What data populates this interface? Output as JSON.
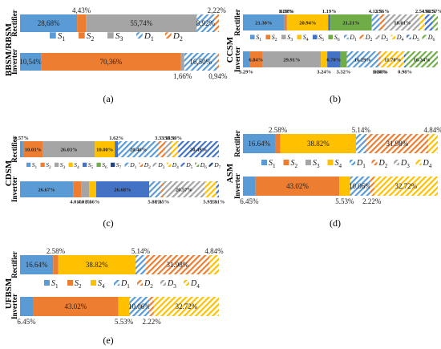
{
  "chart_data": [
    {
      "type": "bar",
      "stacked": "horizontal-100%",
      "title": "",
      "ylabel": "BBSM/RBSM",
      "caption": "(a)",
      "categories": [
        "Rectifier",
        "Inverter"
      ],
      "legend": [
        "S1",
        "S2",
        "S3",
        "D1",
        "D2"
      ],
      "series": [
        {
          "name": "S1",
          "values": [
            28.68,
            10.54
          ]
        },
        {
          "name": "S2",
          "values": [
            4.43,
            70.36
          ]
        },
        {
          "name": "S3",
          "values": [
            55.74,
            1.66
          ]
        },
        {
          "name": "D1",
          "values": [
            8.92,
            16.5
          ]
        },
        {
          "name": "D2",
          "values": [
            2.22,
            0.94
          ]
        }
      ],
      "value_labels": [
        [
          "28,68%",
          "4,43%",
          "55,74%",
          "8,92%",
          "2,22%"
        ],
        [
          "10,54%",
          "70,36%",
          "1,66%",
          "16,50%",
          "0,94%"
        ]
      ]
    },
    {
      "type": "bar",
      "stacked": "horizontal-100%",
      "title": "",
      "ylabel": "CCSM",
      "caption": "(b)",
      "categories": [
        "Rectifier",
        "Inverter"
      ],
      "legend": [
        "S1",
        "S2",
        "S3",
        "S4",
        "S5",
        "S6",
        "D1",
        "D2",
        "D3",
        "D4",
        "D5",
        "D6"
      ],
      "series": [
        {
          "name": "S1",
          "values": [
            21.3,
            3.29
          ]
        },
        {
          "name": "S2",
          "values": [
            1.19,
            6.84
          ]
        },
        {
          "name": "S3",
          "values": [
            0.31,
            29.91
          ]
        },
        {
          "name": "S4",
          "values": [
            20.94,
            3.24
          ]
        },
        {
          "name": "S5",
          "values": [
            1.19,
            6.7
          ]
        },
        {
          "name": "S6",
          "values": [
            21.21,
            3.32
          ]
        },
        {
          "name": "D1",
          "values": [
            4.13,
            16.29
          ]
        },
        {
          "name": "D2",
          "values": [
            2.56,
            1.04
          ]
        },
        {
          "name": "D3",
          "values": [
            18.01,
            0.36
          ]
        },
        {
          "name": "D4",
          "values": [
            2.54,
            11.7
          ]
        },
        {
          "name": "D5",
          "values": [
            4.08,
            0.98
          ]
        },
        {
          "name": "D6",
          "values": [
            2.57,
            16.34
          ]
        }
      ],
      "value_labels": [
        [
          "21.30%",
          "1.19%",
          "0.31%",
          "20.94%",
          "1.19%",
          "21.21%",
          "4.13%",
          "2.56%",
          "18.01%",
          "2.54%",
          "4.08%",
          "2.57%"
        ],
        [
          "3.29%",
          "6.84%",
          "29.91%",
          "3.24%",
          "6.70%",
          "3.32%",
          "16.29%",
          "1.04%",
          "0.36%",
          "11.70%",
          "0.98%",
          "16.34%"
        ]
      ]
    },
    {
      "type": "bar",
      "stacked": "horizontal-100%",
      "title": "",
      "ylabel": "CDSM",
      "caption": "(c)",
      "categories": [
        "Rectifier",
        "Inverter"
      ],
      "legend": [
        "S1",
        "S2",
        "S3",
        "S4",
        "S5",
        "S6",
        "S7",
        "D1",
        "D2",
        "D3",
        "D4",
        "D5",
        "D6",
        "D7"
      ],
      "series": [
        {
          "name": "S1",
          "values": [
            1.57,
            26.67
          ]
        },
        {
          "name": "S2",
          "values": [
            10.03,
            4.01
          ]
        },
        {
          "name": "S3",
          "values": [
            26.03,
            4.01
          ]
        },
        {
          "name": "S4",
          "values": [
            10.0,
            3.56
          ]
        },
        {
          "name": "S5",
          "values": [
            1.62,
            26.68
          ]
        },
        {
          "name": "D1",
          "values": [
            20.46,
            5.88
          ]
        },
        {
          "name": "D2",
          "values": [
            3.33,
            1.35
          ]
        },
        {
          "name": "D3",
          "values": [
            3.16,
            20.57
          ]
        },
        {
          "name": "D4",
          "values": [
            3.3,
            5.95
          ]
        },
        {
          "name": "D5",
          "values": [
            20.49,
            1.31
          ]
        }
      ],
      "value_labels": [
        [
          "1.57%",
          "10.03%",
          "26.03%",
          "10.00%",
          "1.62%",
          "20.46%",
          "3.33%",
          "3.16%",
          "3.30%",
          "20.49%"
        ],
        [
          "26.67%",
          "4.01%",
          "4.01%",
          "3.56%",
          "26.68%",
          "5.88%",
          "1.35%",
          "20.57%",
          "5.95%",
          "1.31%"
        ]
      ]
    },
    {
      "type": "bar",
      "stacked": "horizontal-100%",
      "title": "",
      "ylabel": "ASM",
      "caption": "(d)",
      "categories": [
        "Rectifier",
        "Inverter"
      ],
      "legend": [
        "S1",
        "S2",
        "S3",
        "S4",
        "D1",
        "D2",
        "D3",
        "D4"
      ],
      "series": [
        {
          "name": "S1",
          "values": [
            16.64,
            6.45
          ]
        },
        {
          "name": "S2",
          "values": [
            2.58,
            43.02
          ]
        },
        {
          "name": "S4",
          "values": [
            38.82,
            5.53
          ]
        },
        {
          "name": "D1",
          "values": [
            5.14,
            10.06
          ]
        },
        {
          "name": "D2",
          "values": [
            31.98,
            2.22
          ]
        },
        {
          "name": "D4",
          "values": [
            4.84,
            32.72
          ]
        }
      ],
      "value_labels": [
        [
          "16.64%",
          "2.58%",
          "38.82%",
          "5.14%",
          "31.98%",
          "4.84%"
        ],
        [
          "6.45%",
          "43.02%",
          "5.53%",
          "10.06%",
          "2.22%",
          "32.72%"
        ]
      ]
    },
    {
      "type": "bar",
      "stacked": "horizontal-100%",
      "title": "",
      "ylabel": "UFBSM",
      "caption": "(e)",
      "categories": [
        "Rectifier",
        "Inverter"
      ],
      "legend": [
        "S1",
        "S2",
        "S4",
        "D1",
        "D2",
        "D3",
        "D4"
      ],
      "series": [
        {
          "name": "S1",
          "values": [
            16.64,
            6.45
          ]
        },
        {
          "name": "S2",
          "values": [
            2.58,
            43.02
          ]
        },
        {
          "name": "S4",
          "values": [
            38.82,
            5.53
          ]
        },
        {
          "name": "D1",
          "values": [
            5.14,
            10.06
          ]
        },
        {
          "name": "D2",
          "values": [
            31.98,
            2.22
          ]
        },
        {
          "name": "D4",
          "values": [
            4.84,
            32.72
          ]
        }
      ],
      "value_labels": [
        [
          "16.64%",
          "2.58%",
          "38.82%",
          "5.14%",
          "31.98%",
          "4.84%"
        ],
        [
          "6.45%",
          "43.02%",
          "5.53%",
          "10.06%",
          "2.22%",
          "32.72%"
        ]
      ]
    }
  ],
  "colors": {
    "S1": "#5b9bd5",
    "S2": "#ed7d31",
    "S3": "#a5a5a5",
    "S4": "#ffc000",
    "S5": "#4472c4",
    "S6": "#70ad47",
    "S7": "#264478",
    "D1": "#5b9bd5",
    "D2": "#ed7d31",
    "D3": "#a5a5a5",
    "D4": "#ffc000",
    "D5": "#4472c4",
    "D6": "#70ad47",
    "D7": "#264478"
  }
}
